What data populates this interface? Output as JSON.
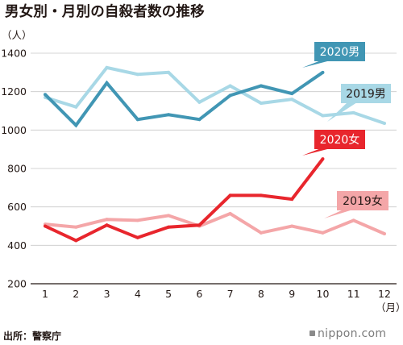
{
  "page": {
    "title": "男女別・月別の自殺者数の推移",
    "source": "出所：警察庁",
    "brand": "nippon.com"
  },
  "chart_data": {
    "type": "line",
    "ylabel": "（人）",
    "xlabel": "（月）",
    "ylim": [
      200,
      1400
    ],
    "y_ticks": [
      200,
      400,
      600,
      800,
      1000,
      1200,
      1400
    ],
    "x": [
      1,
      2,
      3,
      4,
      5,
      6,
      7,
      8,
      9,
      10,
      11,
      12
    ],
    "grid": true,
    "series": [
      {
        "name": "2019男",
        "color": "#a8d8e6",
        "values": [
          1170,
          1120,
          1325,
          1290,
          1300,
          1145,
          1230,
          1140,
          1160,
          1075,
          1090,
          1035
        ]
      },
      {
        "name": "2020男",
        "color": "#4196b4",
        "values": [
          1185,
          1025,
          1245,
          1055,
          1080,
          1055,
          1180,
          1230,
          1190,
          1300,
          null,
          null
        ]
      },
      {
        "name": "2019女",
        "color": "#f4a6a8",
        "values": [
          510,
          495,
          535,
          530,
          555,
          500,
          565,
          465,
          500,
          465,
          530,
          460
        ]
      },
      {
        "name": "2020女",
        "color": "#e8262d",
        "values": [
          500,
          425,
          505,
          440,
          495,
          505,
          660,
          660,
          640,
          850,
          null,
          null
        ]
      }
    ]
  }
}
